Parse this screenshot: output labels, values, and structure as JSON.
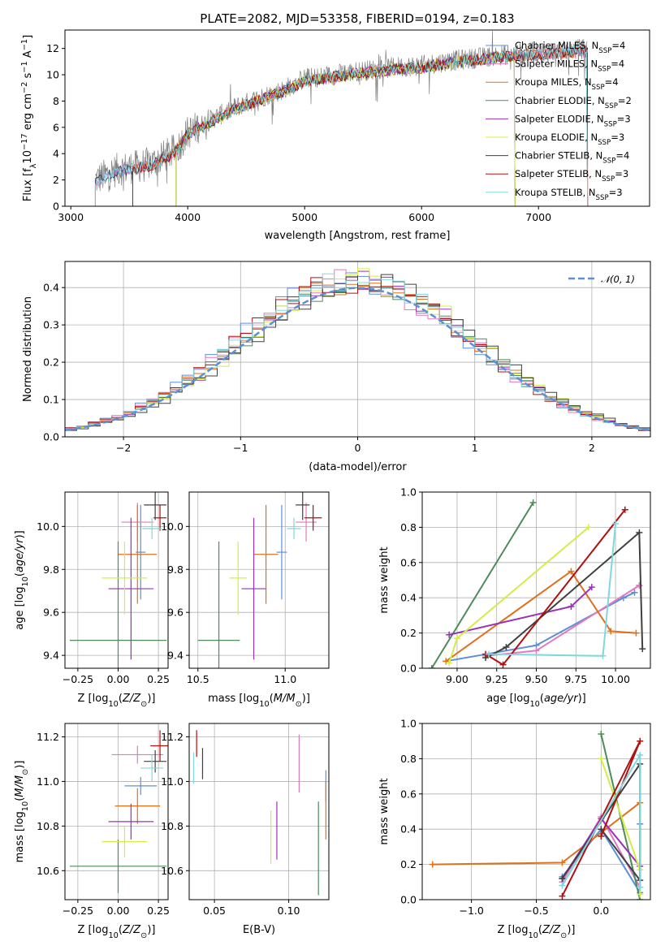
{
  "figure": {
    "title": "PLATE=2082, MJD=53358, FIBERID=0194, z=0.183"
  },
  "chart_data": [
    {
      "id": "spectrum",
      "type": "line",
      "xlabel": "wavelength [Angstrom, rest frame]",
      "ylabel": "Flux [f_λ 10^-17 erg cm^-2 s^-1 A^-1]",
      "xlim": [
        2950,
        7950
      ],
      "ylim": [
        0,
        13.4
      ],
      "xticks": [
        3000,
        4000,
        5000,
        6000,
        7000
      ],
      "yticks": [
        0,
        2,
        4,
        6,
        8,
        10,
        12
      ],
      "data_color": "#808080",
      "legend_position": "right",
      "series": [
        {
          "name": "Chabrier MILES, N_SSP=4",
          "color": "#5b8fd9",
          "x_start": 3210,
          "x_end": 7420
        },
        {
          "name": "Salpeter MILES, N_SSP=4",
          "color": "#e377c2",
          "x_start": 3210,
          "x_end": 7420
        },
        {
          "name": "Kroupa MILES, N_SSP=4",
          "color": "#e0701a",
          "x_start": 3530,
          "x_end": 7420
        },
        {
          "name": "Chabrier ELODIE, N_SSP=2",
          "color": "#4e8b5a",
          "x_start": 3900,
          "x_end": 6800
        },
        {
          "name": "Salpeter ELODIE, N_SSP=3",
          "color": "#9b30b8",
          "x_start": 3900,
          "x_end": 6800
        },
        {
          "name": "Kroupa ELODIE, N_SSP=3",
          "color": "#d4ec4a",
          "x_start": 3900,
          "x_end": 6800
        },
        {
          "name": "Chabrier STELIB, N_SSP=4",
          "color": "#404040",
          "x_start": 3210,
          "x_end": 7420
        },
        {
          "name": "Salpeter STELIB, N_SSP=3",
          "color": "#b01010",
          "x_start": 3530,
          "x_end": 7420
        },
        {
          "name": "Kroupa STELIB, N_SSP=3",
          "color": "#7fd8dd",
          "x_start": 3210,
          "x_end": 7420
        }
      ],
      "continuum": {
        "x": [
          3210,
          3400,
          3550,
          3700,
          3900,
          4000,
          4200,
          4400,
          4600,
          4800,
          5000,
          5200,
          5400,
          5600,
          5800,
          6000,
          6200,
          6400,
          6600,
          6800,
          7000,
          7200,
          7420
        ],
        "y": [
          2.0,
          2.8,
          3.0,
          3.3,
          4.3,
          5.6,
          6.6,
          7.5,
          8.2,
          8.8,
          9.7,
          9.9,
          10.2,
          10.4,
          10.6,
          10.7,
          11.0,
          11.2,
          11.4,
          11.6,
          11.7,
          11.8,
          12.0
        ]
      }
    },
    {
      "id": "residuals",
      "type": "line",
      "xlabel": "(data-model)/error",
      "ylabel": "Normed distribution",
      "xlim": [
        -2.5,
        2.5
      ],
      "ylim": [
        0,
        0.47
      ],
      "xticks": [
        -2,
        -1,
        0,
        1,
        2
      ],
      "yticks": [
        0.0,
        0.1,
        0.2,
        0.3,
        0.4
      ],
      "legend": "𝒩(0, 1)",
      "legend_position": "top-right",
      "normal_color": "#5b8fd9",
      "bin_width": 0.1
    },
    {
      "id": "age-vs-Z",
      "type": "scatter",
      "xlabel": "Z [log10(Z/Z⊙)]",
      "ylabel": "age [log10(age/yr)]",
      "xlim": [
        -0.33,
        0.31
      ],
      "ylim": [
        9.34,
        10.16
      ],
      "xticks": [
        -0.25,
        0.0,
        0.25
      ],
      "yticks": [
        9.4,
        9.6,
        9.8,
        10.0
      ],
      "points": [
        {
          "color": "#5b8fd9",
          "x": 0.14,
          "xerr": 0.03,
          "y": 9.88,
          "yerr": 0.22
        },
        {
          "color": "#e377c2",
          "x": 0.12,
          "xerr": 0.1,
          "y": 10.02,
          "yerr": 0.09
        },
        {
          "color": "#e0701a",
          "x": 0.12,
          "xerr": 0.12,
          "y": 9.87,
          "yerr": 0.23
        },
        {
          "color": "#4e8b5a",
          "x": 0.0,
          "xerr": 0.3,
          "y": 9.47,
          "yerr": 0.46
        },
        {
          "color": "#9b30b8",
          "x": 0.08,
          "xerr": 0.14,
          "y": 9.71,
          "yerr": 0.33
        },
        {
          "color": "#d4ec4a",
          "x": 0.04,
          "xerr": 0.14,
          "y": 9.76,
          "yerr": 0.17
        },
        {
          "color": "#404040",
          "x": 0.23,
          "xerr": 0.07,
          "y": 10.1,
          "yerr": 0.07
        },
        {
          "color": "#b01010",
          "x": 0.26,
          "xerr": 0.04,
          "y": 10.04,
          "yerr": 0.06
        },
        {
          "color": "#7fd8dd",
          "x": 0.21,
          "xerr": 0.06,
          "y": 9.99,
          "yerr": 0.05
        }
      ]
    },
    {
      "id": "age-vs-mass",
      "type": "scatter",
      "xlabel": "mass [log10(M/M⊙)]",
      "ylabel": "",
      "xlim": [
        10.45,
        11.25
      ],
      "ylim": [
        9.34,
        10.16
      ],
      "xticks": [
        10.5,
        11.0
      ],
      "yticks": [
        9.4,
        9.6,
        9.8,
        10.0
      ],
      "points": [
        {
          "color": "#5b8fd9",
          "x": 10.98,
          "xerr": 0.03,
          "y": 9.88,
          "yerr": 0.22
        },
        {
          "color": "#e377c2",
          "x": 11.12,
          "xerr": 0.06,
          "y": 10.02,
          "yerr": 0.09
        },
        {
          "color": "#e0701a",
          "x": 10.89,
          "xerr": 0.07,
          "y": 9.87,
          "yerr": 0.23
        },
        {
          "color": "#4e8b5a",
          "x": 10.62,
          "xerr": 0.12,
          "y": 9.47,
          "yerr": 0.46
        },
        {
          "color": "#9b30b8",
          "x": 10.82,
          "xerr": 0.07,
          "y": 9.71,
          "yerr": 0.33
        },
        {
          "color": "#d4ec4a",
          "x": 10.73,
          "xerr": 0.05,
          "y": 9.76,
          "yerr": 0.17
        },
        {
          "color": "#404040",
          "x": 11.1,
          "xerr": 0.04,
          "y": 10.1,
          "yerr": 0.07
        },
        {
          "color": "#b01010",
          "x": 11.16,
          "xerr": 0.05,
          "y": 10.04,
          "yerr": 0.06
        },
        {
          "color": "#7fd8dd",
          "x": 11.05,
          "xerr": 0.04,
          "y": 9.99,
          "yerr": 0.05
        }
      ]
    },
    {
      "id": "weight-vs-age",
      "type": "line",
      "xlabel": "age [log10(age/yr)]",
      "ylabel": "mass weight",
      "xlim": [
        8.78,
        10.22
      ],
      "ylim": [
        0,
        1
      ],
      "xticks": [
        9.0,
        9.25,
        9.5,
        9.75,
        10.0
      ],
      "yticks": [
        0.0,
        0.2,
        0.4,
        0.6,
        0.8,
        1.0
      ],
      "series": [
        {
          "color": "#5b8fd9",
          "x": [
            8.93,
            9.5,
            10.05,
            10.12
          ],
          "y": [
            0.04,
            0.13,
            0.4,
            0.43
          ]
        },
        {
          "color": "#e377c2",
          "x": [
            9.18,
            9.5,
            10.15,
            10.15
          ],
          "y": [
            0.07,
            0.1,
            0.47,
            0.47
          ]
        },
        {
          "color": "#e0701a",
          "x": [
            8.93,
            9.72,
            9.97,
            10.13
          ],
          "y": [
            0.04,
            0.55,
            0.21,
            0.2
          ]
        },
        {
          "color": "#4e8b5a",
          "x": [
            8.84,
            9.48
          ],
          "y": [
            0.0,
            0.94
          ]
        },
        {
          "color": "#9b30b8",
          "x": [
            8.95,
            9.72,
            9.85
          ],
          "y": [
            0.19,
            0.35,
            0.46
          ]
        },
        {
          "color": "#d4ec4a",
          "x": [
            8.95,
            9.0,
            9.83
          ],
          "y": [
            0.03,
            0.17,
            0.8
          ]
        },
        {
          "color": "#404040",
          "x": [
            9.18,
            9.31,
            10.15,
            10.17
          ],
          "y": [
            0.06,
            0.12,
            0.77,
            0.11
          ]
        },
        {
          "color": "#b01010",
          "x": [
            9.18,
            9.29,
            10.06
          ],
          "y": [
            0.08,
            0.02,
            0.9
          ]
        },
        {
          "color": "#7fd8dd",
          "x": [
            9.2,
            9.92,
            10.0
          ],
          "y": [
            0.08,
            0.07,
            0.82
          ]
        }
      ]
    },
    {
      "id": "mass-vs-Z",
      "type": "scatter",
      "xlabel": "Z [log10(Z/Z⊙)]",
      "ylabel": "mass [log10(M/M⊙)]",
      "xlim": [
        -0.33,
        0.31
      ],
      "ylim": [
        10.47,
        11.26
      ],
      "xticks": [
        -0.25,
        0.0,
        0.25
      ],
      "yticks": [
        10.6,
        10.8,
        11.0,
        11.2
      ],
      "points": [
        {
          "color": "#5b8fd9",
          "x": 0.14,
          "xerr": 0.1,
          "y": 10.98,
          "yerr": 0.04
        },
        {
          "color": "#e377c2",
          "x": 0.12,
          "xerr": 0.16,
          "y": 11.12,
          "yerr": 0.04
        },
        {
          "color": "#e0701a",
          "x": 0.12,
          "xerr": 0.14,
          "y": 10.89,
          "yerr": 0.08
        },
        {
          "color": "#4e8b5a",
          "x": 0.0,
          "xerr": 0.3,
          "y": 10.62,
          "yerr": 0.12
        },
        {
          "color": "#9b30b8",
          "x": 0.08,
          "xerr": 0.14,
          "y": 10.82,
          "yerr": 0.08
        },
        {
          "color": "#d4ec4a",
          "x": 0.04,
          "xerr": 0.14,
          "y": 10.73,
          "yerr": 0.07
        },
        {
          "color": "#404040",
          "x": 0.23,
          "xerr": 0.07,
          "y": 11.09,
          "yerr": 0.05
        },
        {
          "color": "#b01010",
          "x": 0.26,
          "xerr": 0.06,
          "y": 11.16,
          "yerr": 0.07
        },
        {
          "color": "#7fd8dd",
          "x": 0.21,
          "xerr": 0.07,
          "y": 11.06,
          "yerr": 0.06
        }
      ]
    },
    {
      "id": "mass-vs-ebv",
      "type": "scatter",
      "xlabel": "E(B-V)",
      "ylabel": "",
      "xlim": [
        0.033,
        0.127
      ],
      "ylim": [
        10.47,
        11.26
      ],
      "xticks": [
        0.05,
        0.1
      ],
      "yticks": [
        10.6,
        10.8,
        11.0,
        11.2
      ],
      "points": [
        {
          "color": "#5b8fd9",
          "x": 0.125,
          "xerr": 0,
          "y": 10.98,
          "yerr": 0.07
        },
        {
          "color": "#e377c2",
          "x": 0.107,
          "xerr": 0,
          "y": 11.08,
          "yerr": 0.13
        },
        {
          "color": "#e0701a",
          "x": 0.125,
          "xerr": 0,
          "y": 10.87,
          "yerr": 0.13
        },
        {
          "color": "#4e8b5a",
          "x": 0.12,
          "xerr": 0,
          "y": 10.7,
          "yerr": 0.21
        },
        {
          "color": "#9b30b8",
          "x": 0.092,
          "xerr": 0,
          "y": 10.78,
          "yerr": 0.13
        },
        {
          "color": "#d4ec4a",
          "x": 0.088,
          "xerr": 0,
          "y": 10.75,
          "yerr": 0.12
        },
        {
          "color": "#404040",
          "x": 0.042,
          "xerr": 0,
          "y": 11.08,
          "yerr": 0.07
        },
        {
          "color": "#b01010",
          "x": 0.038,
          "xerr": 0,
          "y": 11.17,
          "yerr": 0.06
        },
        {
          "color": "#7fd8dd",
          "x": 0.036,
          "xerr": 0,
          "y": 11.06,
          "yerr": 0.07
        }
      ]
    },
    {
      "id": "weight-vs-Z",
      "type": "line",
      "xlabel": "Z [log10(Z/Z⊙)]",
      "ylabel": "mass weight",
      "xlim": [
        -1.38,
        0.38
      ],
      "ylim": [
        0,
        1
      ],
      "xticks": [
        -1.0,
        -0.5,
        0.0
      ],
      "yticks": [
        0.0,
        0.2,
        0.4,
        0.6,
        0.8,
        1.0
      ],
      "series": [
        {
          "color": "#5b8fd9",
          "x": [
            -0.3,
            0.0,
            0.3,
            0.3
          ],
          "y": [
            0.13,
            0.4,
            0.04,
            0.43
          ]
        },
        {
          "color": "#e377c2",
          "x": [
            -0.3,
            0.0,
            0.3
          ],
          "y": [
            0.1,
            0.47,
            0.07
          ]
        },
        {
          "color": "#e0701a",
          "x": [
            -1.3,
            -0.3,
            0.3
          ],
          "y": [
            0.2,
            0.21,
            0.55
          ]
        },
        {
          "color": "#4e8b5a",
          "x": [
            0.0,
            0.3
          ],
          "y": [
            0.94,
            0.0
          ]
        },
        {
          "color": "#9b30b8",
          "x": [
            -0.3,
            0.0,
            0.3
          ],
          "y": [
            0.12,
            0.46,
            0.19
          ]
        },
        {
          "color": "#d4ec4a",
          "x": [
            0.0,
            0.3,
            0.3
          ],
          "y": [
            0.8,
            0.17,
            0.03
          ]
        },
        {
          "color": "#404040",
          "x": [
            -0.3,
            0.3,
            0.3,
            0.0
          ],
          "y": [
            0.12,
            0.77,
            0.11,
            0.4
          ]
        },
        {
          "color": "#b01010",
          "x": [
            -0.3,
            0.3,
            0.0
          ],
          "y": [
            0.02,
            0.9,
            0.36
          ]
        },
        {
          "color": "#7fd8dd",
          "x": [
            -0.3,
            0.3,
            0.3
          ],
          "y": [
            0.08,
            0.82,
            0.07
          ]
        }
      ]
    }
  ]
}
